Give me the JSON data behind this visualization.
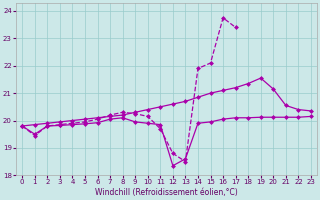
{
  "xlabel": "Windchill (Refroidissement éolien,°C)",
  "background_color": "#cce8e8",
  "grid_color": "#99cccc",
  "line_color": "#aa00aa",
  "x_values": [
    0,
    1,
    2,
    3,
    4,
    5,
    6,
    7,
    8,
    9,
    10,
    11,
    12,
    13,
    14,
    15,
    16,
    17,
    18,
    19,
    20,
    21,
    22,
    23
  ],
  "line_spike": [
    19.8,
    19.45,
    19.8,
    19.85,
    19.9,
    19.95,
    20.05,
    20.2,
    20.3,
    20.25,
    20.15,
    19.7,
    18.8,
    18.5,
    21.9,
    22.1,
    23.75,
    23.4,
    null,
    null,
    null,
    null,
    null,
    null
  ],
  "line_flat": [
    19.8,
    19.5,
    19.8,
    19.82,
    19.85,
    19.88,
    19.92,
    20.05,
    20.1,
    19.95,
    19.9,
    19.85,
    18.35,
    18.6,
    19.9,
    19.95,
    20.05,
    20.1,
    20.1,
    20.12,
    20.12,
    20.12,
    20.12,
    20.15
  ],
  "line_diag": [
    19.8,
    19.85,
    19.9,
    19.95,
    20.0,
    20.05,
    20.1,
    20.15,
    20.2,
    20.3,
    20.4,
    20.5,
    20.6,
    20.7,
    20.85,
    21.0,
    21.1,
    21.2,
    21.35,
    21.55,
    21.15,
    20.55,
    20.4,
    20.35
  ],
  "ylim": [
    18.0,
    24.3
  ],
  "xlim": [
    -0.5,
    23.5
  ],
  "yticks": [
    18,
    19,
    20,
    21,
    22,
    23,
    24
  ],
  "xticks": [
    0,
    1,
    2,
    3,
    4,
    5,
    6,
    7,
    8,
    9,
    10,
    11,
    12,
    13,
    14,
    15,
    16,
    17,
    18,
    19,
    20,
    21,
    22,
    23
  ]
}
